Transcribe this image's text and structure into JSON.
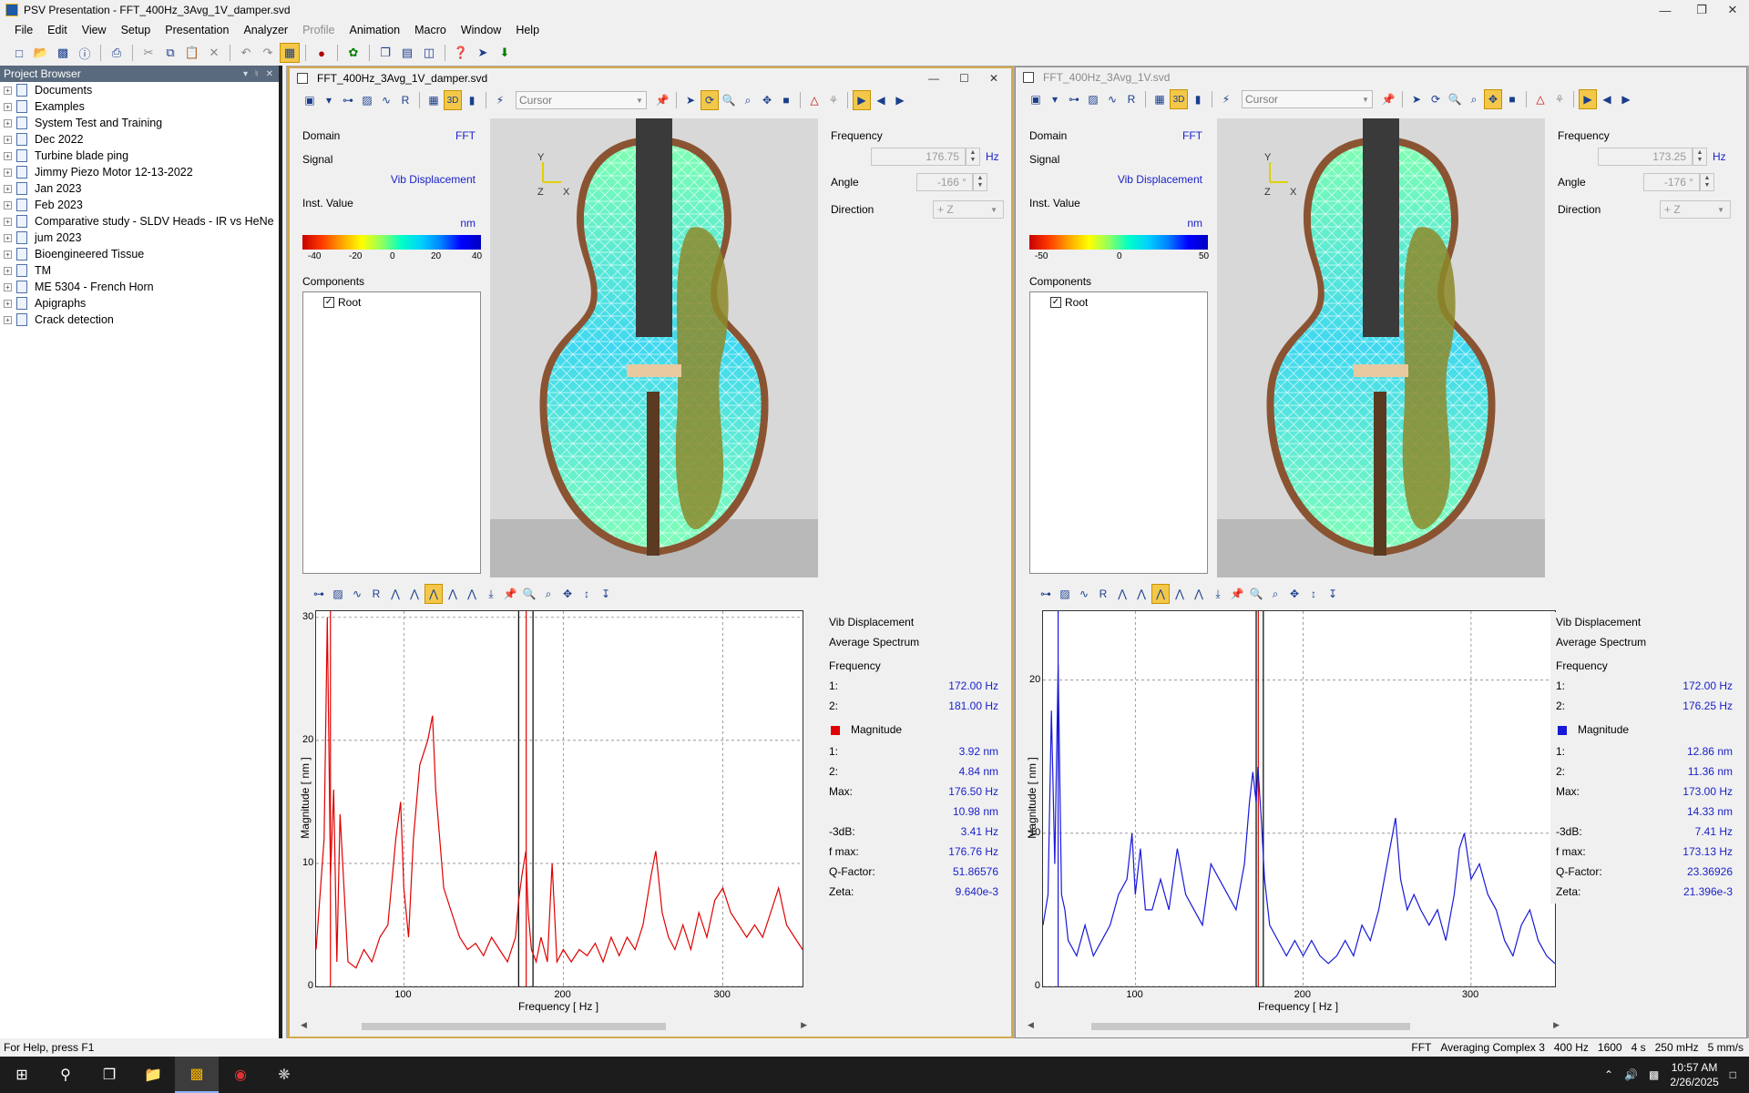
{
  "app": {
    "title": "PSV Presentation - FFT_400Hz_3Avg_1V_damper.svd"
  },
  "menu": [
    "File",
    "Edit",
    "View",
    "Setup",
    "Presentation",
    "Analyzer",
    "Profile",
    "Animation",
    "Macro",
    "Window",
    "Help"
  ],
  "project_browser": {
    "title": "Project Browser",
    "items": [
      "Documents",
      "Examples",
      "System Test and Training",
      "Dec 2022",
      "Turbine blade ping",
      "Jimmy Piezo Motor 12-13-2022",
      "Jan 2023",
      "Feb 2023",
      "Comparative study - SLDV Heads - IR vs HeNe",
      "jum 2023",
      "Bioengineered Tissue",
      "TM",
      "ME 5304 - French Horn",
      "Apigraphs",
      "Crack detection"
    ]
  },
  "win1": {
    "title": "FFT_400Hz_3Avg_1V_damper.svd",
    "cursor_label": "Cursor",
    "domain_label": "Domain",
    "domain_value": "FFT",
    "signal_label": "Signal",
    "signal_value": "Vib Displacement",
    "inst_label": "Inst. Value",
    "unit": "nm",
    "colorbar_ticks": [
      "-40",
      "-20",
      "0",
      "20",
      "40"
    ],
    "components_label": "Components",
    "root": "Root",
    "frequency_label": "Frequency",
    "frequency_value": "176.75",
    "frequency_unit": "Hz",
    "angle_label": "Angle",
    "angle_value": "-166 °",
    "direction_label": "Direction",
    "direction_value": "+ Z",
    "axis_y": "Z",
    "axis_x": "X",
    "axis_top": "Y",
    "stats": {
      "title1": "Vib Displacement",
      "title2": "Average Spectrum",
      "frequency": "Frequency",
      "f1_label": "1:",
      "f1": "172.00 Hz",
      "f2_label": "2:",
      "f2": "181.00 Hz",
      "magnitude": "Magnitude",
      "m1_label": "1:",
      "m1": "3.92 nm",
      "m2_label": "2:",
      "m2": "4.84 nm",
      "max_label": "Max:",
      "max_f": "176.50 Hz",
      "max_v": "10.98 nm",
      "db_label": "-3dB:",
      "db": "3.41 Hz",
      "fmax_label": "f max:",
      "fmax": "176.76 Hz",
      "q_label": "Q-Factor:",
      "q": "51.86576",
      "zeta_label": "Zeta:",
      "zeta": "9.640e-3"
    }
  },
  "win2": {
    "title": "FFT_400Hz_3Avg_1V.svd",
    "cursor_label": "Cursor",
    "domain_label": "Domain",
    "domain_value": "FFT",
    "signal_label": "Signal",
    "signal_value": "Vib Displacement",
    "inst_label": "Inst. Value",
    "unit": "nm",
    "colorbar_ticks": [
      "-50",
      "0",
      "50"
    ],
    "components_label": "Components",
    "root": "Root",
    "frequency_label": "Frequency",
    "frequency_value": "173.25",
    "frequency_unit": "Hz",
    "angle_label": "Angle",
    "angle_value": "-176 °",
    "direction_label": "Direction",
    "direction_value": "+ Z",
    "axis_y": "Z",
    "axis_x": "X",
    "axis_top": "Y",
    "stats": {
      "title1": "Vib Displacement",
      "title2": "Average Spectrum",
      "frequency": "Frequency",
      "f1_label": "1:",
      "f1": "172.00 Hz",
      "f2_label": "2:",
      "f2": "176.25 Hz",
      "magnitude": "Magnitude",
      "m1_label": "1:",
      "m1": "12.86 nm",
      "m2_label": "2:",
      "m2": "11.36 nm",
      "max_label": "Max:",
      "max_f": "173.00 Hz",
      "max_v": "14.33 nm",
      "db_label": "-3dB:",
      "db": "7.41 Hz",
      "fmax_label": "f max:",
      "fmax": "173.13 Hz",
      "q_label": "Q-Factor:",
      "q": "23.36926",
      "zeta_label": "Zeta:",
      "zeta": "21.396e-3"
    }
  },
  "chart_data": [
    {
      "type": "line",
      "title": "",
      "xlabel": "Frequency [ Hz ]",
      "ylabel": "Magnitude [ nm ]",
      "xlim": [
        45,
        350
      ],
      "ylim": [
        0,
        30.5
      ],
      "xticks": [
        100,
        200,
        300
      ],
      "yticks": [
        0,
        10,
        20,
        30
      ],
      "grid": true,
      "series": [
        {
          "color": "#e00000",
          "x": [
            45,
            50,
            52,
            54,
            56,
            58,
            60,
            65,
            70,
            75,
            80,
            85,
            90,
            95,
            98,
            100,
            103,
            106,
            110,
            115,
            118,
            120,
            125,
            130,
            135,
            140,
            145,
            150,
            155,
            160,
            165,
            170,
            172,
            174,
            176.5,
            178,
            180,
            183,
            186,
            190,
            193,
            196,
            200,
            205,
            210,
            215,
            220,
            225,
            230,
            235,
            240,
            245,
            250,
            255,
            258,
            262,
            266,
            270,
            275,
            280,
            285,
            290,
            295,
            300,
            305,
            310,
            315,
            320,
            325,
            330,
            335,
            340,
            345,
            350
          ],
          "y": [
            3,
            12,
            30,
            9,
            16,
            2,
            14,
            2,
            1.5,
            3,
            2,
            4,
            5,
            12,
            15,
            8,
            4,
            12,
            18,
            20,
            22,
            16,
            8,
            6,
            4,
            3,
            3.5,
            2.5,
            4,
            3,
            2,
            4,
            7,
            9,
            10.98,
            6,
            3,
            2,
            4,
            2,
            10,
            2,
            3,
            2,
            3,
            2.5,
            3.5,
            2,
            4,
            2.5,
            4,
            3,
            5,
            9,
            11,
            6,
            4,
            3,
            5,
            3,
            6,
            4,
            7,
            8,
            6,
            5,
            4,
            5,
            4,
            6,
            8,
            5,
            4,
            3
          ]
        }
      ],
      "cursors": [
        {
          "x": 172,
          "color": "#000"
        },
        {
          "x": 181,
          "color": "#000"
        },
        {
          "x": 176.75,
          "color": "#e00000"
        },
        {
          "x": 54,
          "color": "#e00000"
        }
      ]
    },
    {
      "type": "line",
      "title": "",
      "xlabel": "Frequency [ Hz ]",
      "ylabel": "Magnitude [ nm ]",
      "xlim": [
        45,
        350
      ],
      "ylim": [
        0,
        24.5
      ],
      "xticks": [
        100,
        200,
        300
      ],
      "yticks": [
        0,
        10,
        20
      ],
      "grid": true,
      "series": [
        {
          "color": "#1818d8",
          "x": [
            45,
            48,
            50,
            52,
            54,
            56,
            58,
            60,
            65,
            70,
            75,
            80,
            85,
            90,
            95,
            98,
            100,
            103,
            106,
            110,
            115,
            120,
            125,
            130,
            135,
            140,
            145,
            150,
            155,
            160,
            165,
            168,
            170,
            172,
            173,
            175,
            177,
            180,
            185,
            190,
            195,
            200,
            205,
            210,
            215,
            220,
            225,
            230,
            235,
            240,
            245,
            250,
            255,
            258,
            262,
            266,
            270,
            275,
            280,
            285,
            290,
            293,
            296,
            300,
            305,
            310,
            315,
            320,
            325,
            330,
            335,
            340,
            345,
            350
          ],
          "y": [
            4,
            6,
            18,
            8,
            21,
            6,
            5,
            3,
            2,
            4,
            2,
            3,
            4,
            6,
            7,
            10,
            6,
            9,
            5,
            5,
            7,
            5,
            9,
            6,
            5,
            4,
            8,
            7,
            6,
            5,
            8,
            12,
            14,
            12,
            14.33,
            11,
            7,
            4,
            3,
            2,
            3,
            2,
            3,
            2,
            1.5,
            2,
            3,
            2,
            4,
            3,
            5,
            8,
            11,
            7,
            5,
            6,
            5,
            4,
            5,
            3,
            6,
            9,
            10,
            7,
            8,
            6,
            5,
            3,
            2,
            4,
            5,
            3,
            2,
            1.5
          ]
        }
      ],
      "cursors": [
        {
          "x": 172,
          "color": "#000"
        },
        {
          "x": 176.25,
          "color": "#000"
        },
        {
          "x": 173.25,
          "color": "#e00000"
        },
        {
          "x": 54,
          "color": "#1818d8"
        }
      ]
    }
  ],
  "status": {
    "help": "For Help, press F1",
    "fft": "FFT",
    "avg": "Averaging Complex 3",
    "bw": "400 Hz",
    "lines": "1600",
    "time": "4 s",
    "res": "250 mHz",
    "vel": "5 mm/s"
  },
  "taskbar": {
    "time": "10:57 AM",
    "date": "2/26/2025"
  }
}
